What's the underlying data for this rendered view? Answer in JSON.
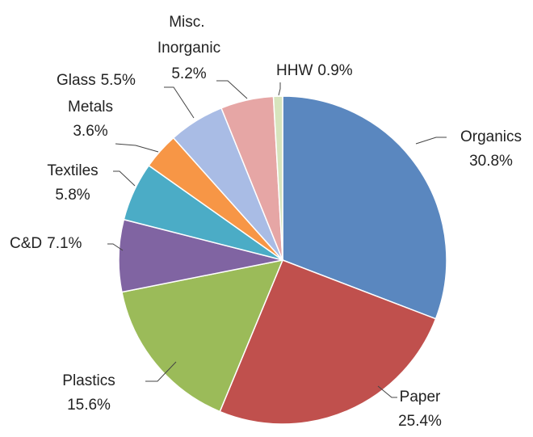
{
  "chart_data": {
    "type": "pie",
    "categories": [
      "Organics",
      "Paper",
      "Plastics",
      "C&D",
      "Textiles",
      "Metals",
      "Glass",
      "Misc. Inorganic",
      "HHW"
    ],
    "values": [
      30.8,
      25.4,
      15.6,
      7.1,
      5.8,
      3.6,
      5.5,
      5.2,
      0.9
    ],
    "value_labels": [
      "30.8%",
      "25.4%",
      "15.6%",
      "7.1%",
      "5.8%",
      "3.6%",
      "5.5%",
      "5.2%",
      "0.9%"
    ],
    "colors": [
      "#5a87bf",
      "#c0504d",
      "#9bbb59",
      "#8064a2",
      "#4bacc6",
      "#f79646",
      "#a9bce5",
      "#e6a6a5",
      "#d7e4bd"
    ]
  }
}
